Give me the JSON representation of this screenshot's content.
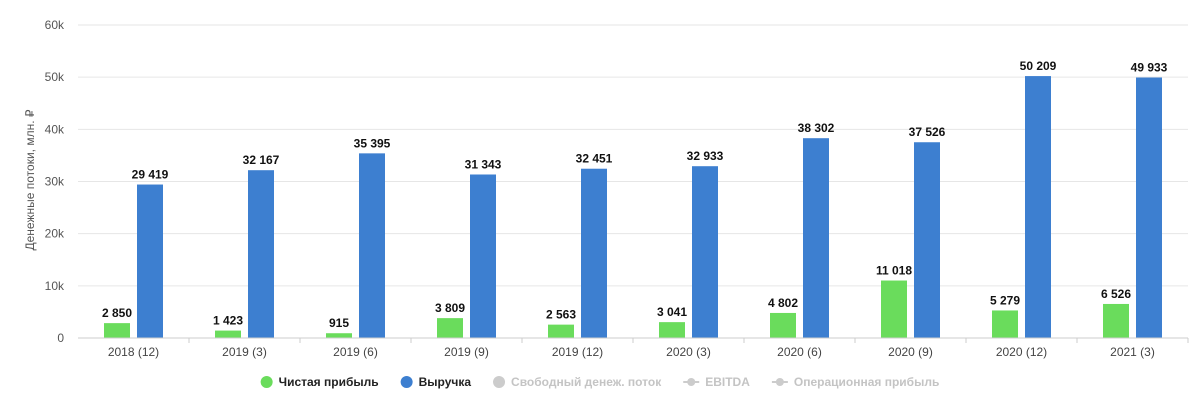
{
  "chart_data": {
    "type": "bar",
    "ylabel": "Денежные потоки, млн. ₽",
    "ylim": [
      0,
      60000
    ],
    "yticks": [
      0,
      10000,
      20000,
      30000,
      40000,
      50000,
      60000
    ],
    "ytick_labels": [
      "0",
      "10k",
      "20k",
      "30k",
      "40k",
      "50k",
      "60k"
    ],
    "categories": [
      "2018 (12)",
      "2019 (3)",
      "2019 (6)",
      "2019 (9)",
      "2019 (12)",
      "2020 (3)",
      "2020 (6)",
      "2020 (9)",
      "2020 (12)",
      "2021 (3)"
    ],
    "grid": true,
    "legend_position": "bottom-center",
    "series": [
      {
        "name": "Чистая прибыль",
        "color": "#6adc5c",
        "values": [
          2850,
          1423,
          915,
          3809,
          2563,
          3041,
          4802,
          11018,
          5279,
          6526
        ],
        "labels": [
          "2 850",
          "1 423",
          "915",
          "3 809",
          "2 563",
          "3 041",
          "4 802",
          "11 018",
          "5 279",
          "6 526"
        ]
      },
      {
        "name": "Выручка",
        "color": "#3d7fd0",
        "values": [
          29419,
          32167,
          35395,
          31343,
          32451,
          32933,
          38302,
          37526,
          50209,
          49933
        ],
        "labels": [
          "29 419",
          "32 167",
          "35 395",
          "31 343",
          "32 451",
          "32 933",
          "38 302",
          "37 526",
          "50 209",
          "49 933"
        ]
      }
    ],
    "legend": [
      {
        "name": "Чистая прибыль",
        "color": "#6adc5c",
        "marker": "circle",
        "active": true
      },
      {
        "name": "Выручка",
        "color": "#3d7fd0",
        "marker": "circle",
        "active": true
      },
      {
        "name": "Свободный денеж. поток",
        "color": "#cccccc",
        "marker": "circle",
        "active": false
      },
      {
        "name": "EBITDA",
        "color": "#cccccc",
        "marker": "line-circle",
        "active": false
      },
      {
        "name": "Операционная прибыль",
        "color": "#cccccc",
        "marker": "line-circle",
        "active": false
      }
    ]
  }
}
